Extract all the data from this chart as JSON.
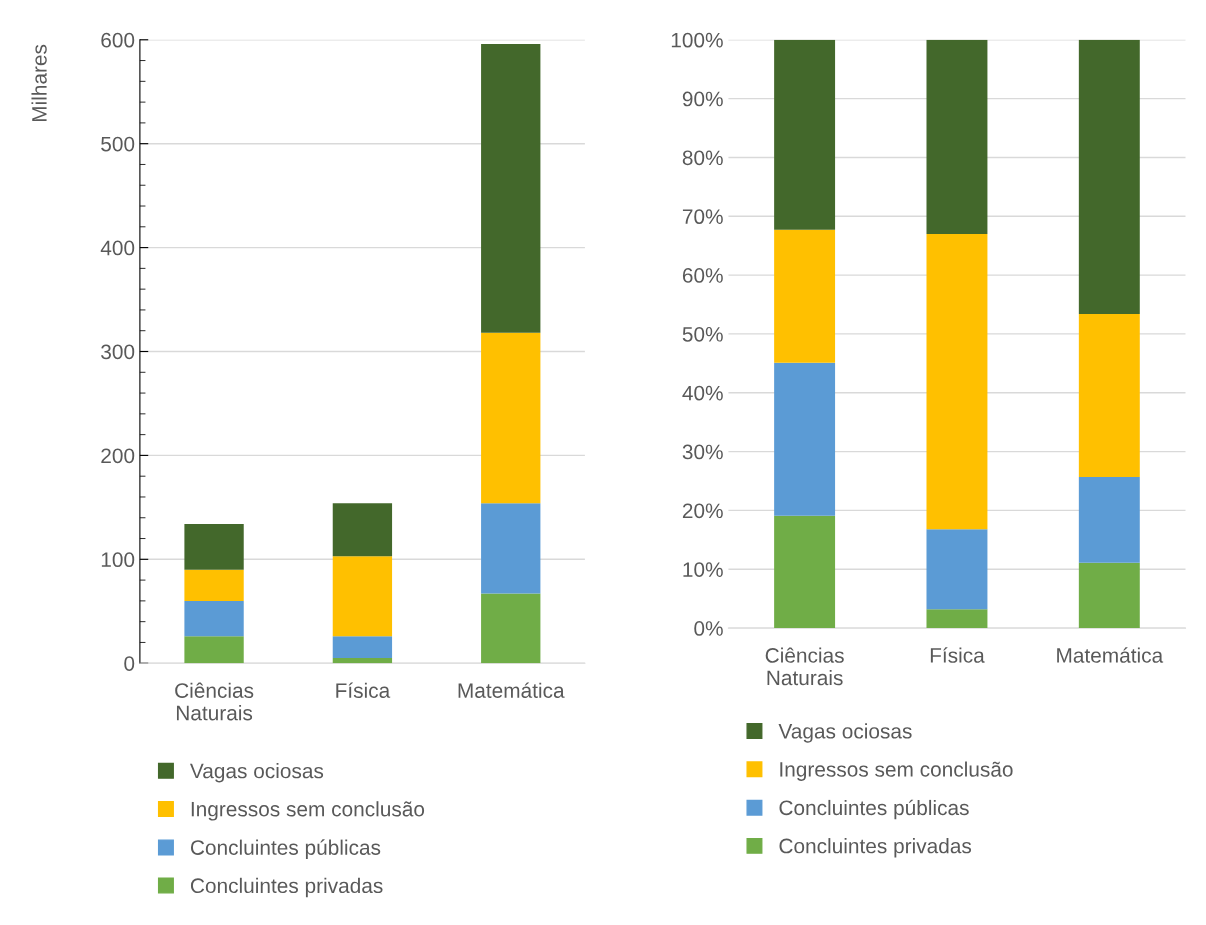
{
  "chart_data": [
    {
      "type": "bar",
      "stacked": true,
      "ylabel": "Milhares",
      "categories": [
        "Ciências\nNaturais",
        "Física",
        "Matemática"
      ],
      "series": [
        {
          "name": "Concluintes privadas",
          "color": "#70ad47",
          "values": [
            26,
            5,
            67
          ]
        },
        {
          "name": "Concluintes públicas",
          "color": "#5b9bd5",
          "values": [
            34,
            21,
            87
          ]
        },
        {
          "name": "Ingressos sem conclusão",
          "color": "#ffc000",
          "values": [
            30,
            77,
            164
          ]
        },
        {
          "name": "Vagas ociosas",
          "color": "#43682b",
          "values": [
            44,
            51,
            278
          ]
        }
      ],
      "ylim": [
        0,
        600
      ],
      "yticks": [
        0,
        100,
        200,
        300,
        400,
        500,
        600
      ],
      "grid": "y",
      "legend": "bottom"
    },
    {
      "type": "bar",
      "stacked": true,
      "categories": [
        "Ciências\nNaturais",
        "Física",
        "Matemática"
      ],
      "series": [
        {
          "name": "Concluintes privadas",
          "color": "#70ad47",
          "values": [
            19.1,
            3.2,
            11.1
          ]
        },
        {
          "name": "Concluintes públicas",
          "color": "#5b9bd5",
          "values": [
            26,
            13.6,
            14.6
          ]
        },
        {
          "name": "Ingressos sem conclusão",
          "color": "#ffc000",
          "values": [
            22.6,
            50.2,
            27.7
          ]
        },
        {
          "name": "Vagas ociosas",
          "color": "#43682b",
          "values": [
            32.3,
            33,
            46.6
          ]
        }
      ],
      "ylim": [
        0,
        100
      ],
      "yticks": [
        {
          "value": 0,
          "label": "0%"
        },
        {
          "value": 10,
          "label": "10%"
        },
        {
          "value": 20,
          "label": "20%"
        },
        {
          "value": 30,
          "label": "30%"
        },
        {
          "value": 40,
          "label": "40%"
        },
        {
          "value": 50,
          "label": "50%"
        },
        {
          "value": 60,
          "label": "60%"
        },
        {
          "value": 70,
          "label": "70%"
        },
        {
          "value": 80,
          "label": "80%"
        },
        {
          "value": 90,
          "label": "90%"
        },
        {
          "value": 100,
          "label": "100%"
        }
      ],
      "grid": "y",
      "legend": "bottom"
    }
  ]
}
